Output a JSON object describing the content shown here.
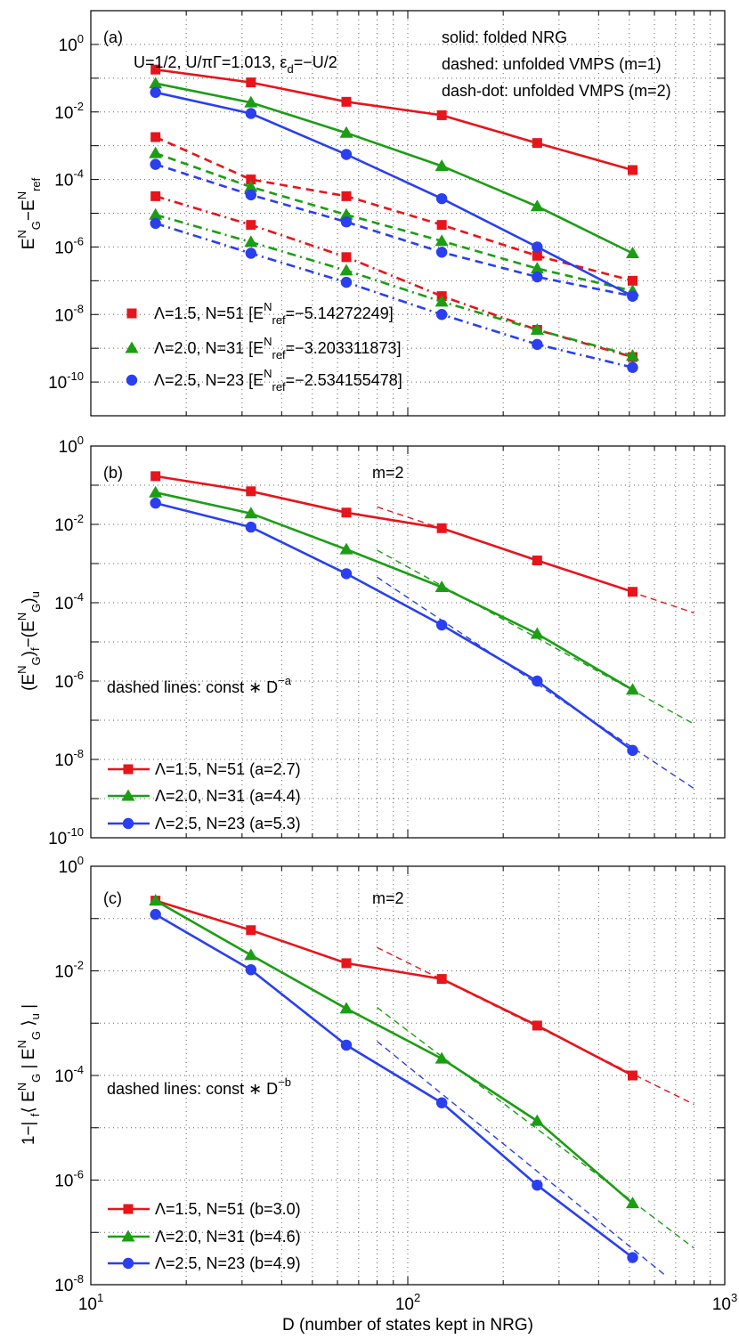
{
  "chart_data": [
    {
      "type": "line",
      "panel_label": "(a)",
      "params_text": "U=1/2, U/πΓ=1.013, ε_d=−U/2",
      "style_notes": [
        "solid: folded NRG",
        "dashed: unfolded VMPS (m=1)",
        "dash-dot: unfolded VMPS (m=2)"
      ],
      "xlabel": "D   (number of states kept in NRG)",
      "ylabel": "E_G^N − E_ref^N",
      "xscale": "log",
      "yscale": "log",
      "xlim": [
        10,
        1000
      ],
      "ylim": [
        1e-11,
        10.0
      ],
      "yticks": [
        1e-10,
        1e-08,
        1e-06,
        0.0001,
        0.01,
        1.0
      ],
      "ytick_labels": [
        "10^-10",
        "10^-8",
        "10^-6",
        "10^-4",
        "10^-2",
        "10^0"
      ],
      "legend_location": "lower-left",
      "series": [
        {
          "name": "Λ=1.5, N=51 [E_ref^N=−5.14272249]",
          "color": "#e8141b",
          "marker": "square",
          "legend": true,
          "lines": [
            {
              "style": "solid",
              "x": [
                16,
                32,
                64,
                128,
                256,
                512
              ],
              "y": [
                0.18,
                0.075,
                0.02,
                0.008,
                0.0012,
                0.00019
              ]
            },
            {
              "style": "dashed",
              "x": [
                16,
                32,
                64,
                128,
                256,
                512
              ],
              "y": [
                0.0018,
                0.0001,
                3.2e-05,
                4.5e-06,
                5.5e-07,
                1e-07
              ]
            },
            {
              "style": "dashdot",
              "x": [
                16,
                32,
                64,
                128,
                256,
                512
              ],
              "y": [
                3.2e-05,
                4.5e-06,
                5e-07,
                3.5e-08,
                3.5e-09,
                5.5e-10
              ]
            }
          ]
        },
        {
          "name": "Λ=2.0, N=31 [E_ref^N=−3.203311873]",
          "color": "#1b9e14",
          "marker": "triangle",
          "legend": true,
          "lines": [
            {
              "style": "solid",
              "x": [
                16,
                32,
                64,
                128,
                256,
                512
              ],
              "y": [
                0.07,
                0.019,
                0.0024,
                0.00025,
                1.6e-05,
                6.5e-07
              ]
            },
            {
              "style": "dashed",
              "x": [
                16,
                32,
                64,
                128,
                256,
                512
              ],
              "y": [
                0.0006,
                6e-05,
                9e-06,
                1.5e-06,
                2.3e-07,
                5e-08
              ]
            },
            {
              "style": "dashdot",
              "x": [
                16,
                32,
                64,
                128,
                256,
                512
              ],
              "y": [
                9e-06,
                1.4e-06,
                2e-07,
                2.4e-08,
                3.5e-09,
                6e-10
              ]
            }
          ]
        },
        {
          "name": "Λ=2.5, N=23 [E_ref^N=−2.534155478]",
          "color": "#2a3ff0",
          "marker": "circle",
          "legend": true,
          "lines": [
            {
              "style": "solid",
              "x": [
                16,
                32,
                64,
                128,
                256,
                512
              ],
              "y": [
                0.038,
                0.009,
                0.00055,
                2.7e-05,
                1e-06,
                3.5e-08
              ]
            },
            {
              "style": "dashed",
              "x": [
                16,
                32,
                64,
                128,
                256,
                512
              ],
              "y": [
                0.00028,
                3.5e-05,
                5.5e-06,
                7e-07,
                1.3e-07,
                3.5e-08
              ]
            },
            {
              "style": "dashdot",
              "x": [
                16,
                32,
                64,
                128,
                256,
                512
              ],
              "y": [
                5e-06,
                6.5e-07,
                9e-08,
                1e-08,
                1.3e-09,
                2.7e-10
              ]
            }
          ]
        }
      ]
    },
    {
      "type": "line",
      "panel_label": "(b)",
      "m_label": "m=2",
      "note": "dashed lines: const ∗ D^−a",
      "ylabel": "(E_G^N)_f − (E_G^N)_u",
      "xscale": "log",
      "yscale": "log",
      "xlim": [
        10,
        1000
      ],
      "ylim": [
        1e-10,
        1.0
      ],
      "yticks": [
        1e-10,
        1e-08,
        1e-06,
        0.0001,
        0.01,
        1.0
      ],
      "ytick_labels": [
        "10^-10",
        "10^-8",
        "10^-6",
        "10^-4",
        "10^-2",
        "10^0"
      ],
      "legend_location": "lower-left",
      "series": [
        {
          "name": "Λ=1.5, N=51 (a=2.7)",
          "color": "#e8141b",
          "marker": "square",
          "legend": true,
          "x": [
            16,
            32,
            64,
            128,
            256,
            512
          ],
          "y": [
            0.17,
            0.07,
            0.02,
            0.008,
            0.0012,
            0.00019
          ],
          "fit": {
            "exponent": 2.7,
            "x": [
              80,
              800
            ],
            "y": [
              0.028,
              5.5e-05
            ]
          }
        },
        {
          "name": "Λ=2.0, N=31 (a=4.4)",
          "color": "#1b9e14",
          "marker": "triangle",
          "legend": true,
          "x": [
            16,
            32,
            64,
            128,
            256,
            512
          ],
          "y": [
            0.065,
            0.019,
            0.0023,
            0.00025,
            1.6e-05,
            6e-07
          ],
          "fit": {
            "exponent": 4.4,
            "x": [
              80,
              800
            ],
            "y": [
              0.0022,
              8e-08
            ]
          }
        },
        {
          "name": "Λ=2.5, N=23 (a=5.3)",
          "color": "#2a3ff0",
          "marker": "circle",
          "legend": true,
          "x": [
            16,
            32,
            64,
            128,
            256,
            512
          ],
          "y": [
            0.035,
            0.0085,
            0.00055,
            2.7e-05,
            1e-06,
            1.7e-08
          ],
          "fit": {
            "exponent": 5.3,
            "x": [
              80,
              800
            ],
            "y": [
              0.00045,
              1.8e-09
            ]
          }
        }
      ]
    },
    {
      "type": "line",
      "panel_label": "(c)",
      "m_label": "m=2",
      "note": "dashed lines: const ∗ D^−b",
      "ylabel": "1−| ⟨E_G^N|E_G^N⟩_u |",
      "xlabel": "D   (number of states kept in NRG)",
      "xscale": "log",
      "yscale": "log",
      "xlim": [
        10,
        1000
      ],
      "ylim": [
        1e-08,
        1.0
      ],
      "xticks": [
        10,
        100,
        1000
      ],
      "xtick_labels": [
        "10^1",
        "10^2",
        "10^3"
      ],
      "yticks": [
        1e-08,
        1e-06,
        0.0001,
        0.01,
        1.0
      ],
      "ytick_labels": [
        "10^-8",
        "10^-6",
        "10^-4",
        "10^-2",
        "10^0"
      ],
      "legend_location": "lower-left",
      "series": [
        {
          "name": "Λ=1.5, N=51 (b=3.0)",
          "color": "#e8141b",
          "marker": "square",
          "legend": true,
          "x": [
            16,
            32,
            64,
            128,
            256,
            512
          ],
          "y": [
            0.22,
            0.06,
            0.014,
            0.007,
            0.0009,
            0.0001
          ],
          "fit": {
            "exponent": 3.0,
            "x": [
              80,
              800
            ],
            "y": [
              0.028,
              2.8e-05
            ]
          }
        },
        {
          "name": "Λ=2.0, N=31 (b=4.6)",
          "color": "#1b9e14",
          "marker": "triangle",
          "legend": true,
          "x": [
            16,
            32,
            64,
            128,
            256,
            512
          ],
          "y": [
            0.22,
            0.02,
            0.0019,
            0.00021,
            1.35e-05,
            3.6e-07
          ],
          "fit": {
            "exponent": 4.6,
            "x": [
              80,
              800
            ],
            "y": [
              0.002,
              5e-08
            ]
          }
        },
        {
          "name": "Λ=2.5, N=23 (b=4.9)",
          "color": "#2a3ff0",
          "marker": "circle",
          "legend": true,
          "x": [
            16,
            32,
            64,
            128,
            256,
            512
          ],
          "y": [
            0.12,
            0.0105,
            0.00038,
            3e-05,
            8e-07,
            3.3e-08
          ],
          "fit": {
            "exponent": 4.9,
            "x": [
              80,
              650
            ],
            "y": [
              0.00045,
              1.5e-08
            ]
          }
        }
      ]
    }
  ]
}
